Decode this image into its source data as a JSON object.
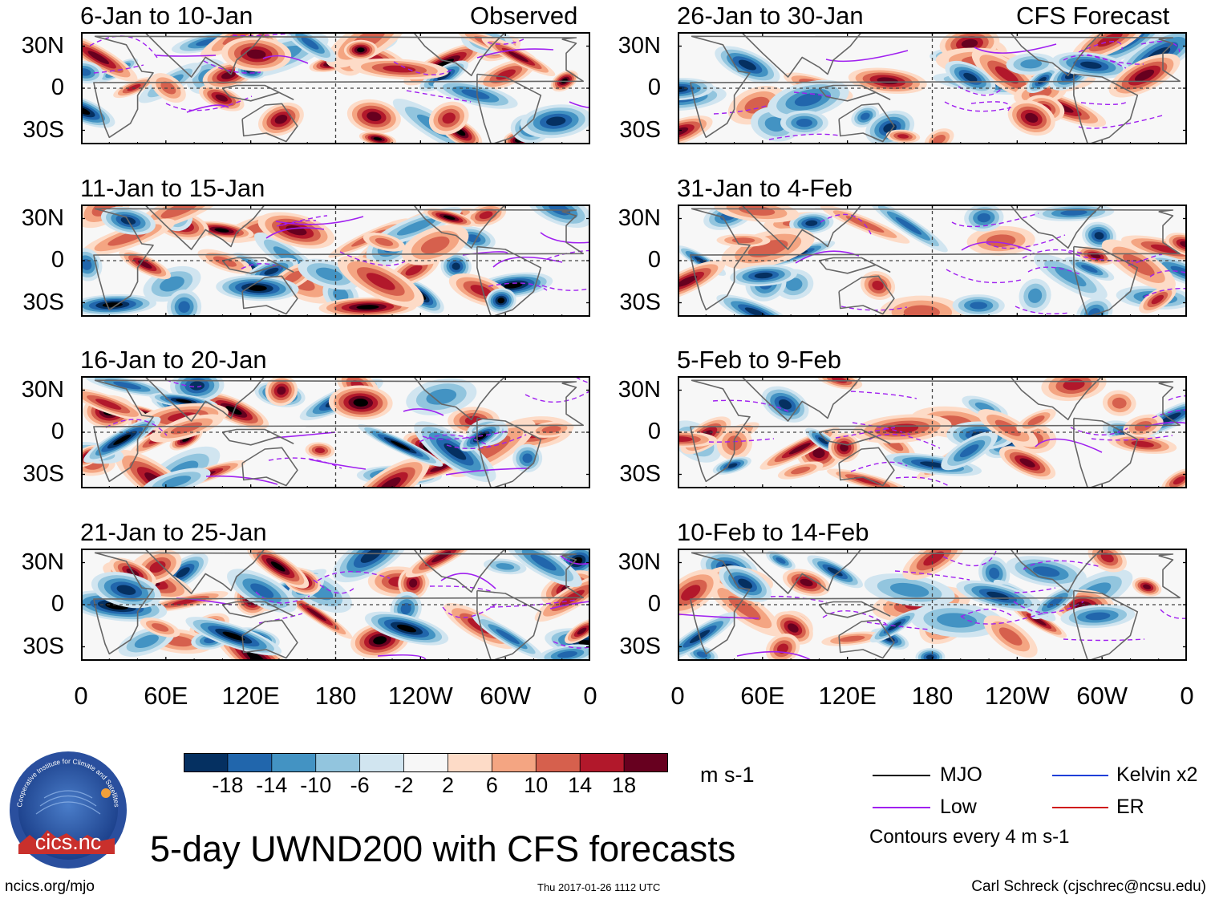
{
  "chart_data": {
    "type": "heatmap",
    "title": "5-day UWND200 with CFS forecasts",
    "variable": "UWND200",
    "units": "m s-1",
    "column_headers": [
      "Observed",
      "CFS Forecast"
    ],
    "panels": [
      {
        "label": "6-Jan to 10-Jan",
        "source": "Observed",
        "seed": 11
      },
      {
        "label": "11-Jan to 15-Jan",
        "source": "Observed",
        "seed": 23
      },
      {
        "label": "16-Jan to 20-Jan",
        "source": "Observed",
        "seed": 37
      },
      {
        "label": "21-Jan to 25-Jan",
        "source": "Observed",
        "seed": 41
      },
      {
        "label": "26-Jan to 30-Jan",
        "source": "CFS Forecast",
        "seed": 53
      },
      {
        "label": "31-Jan to 4-Feb",
        "source": "CFS Forecast",
        "seed": 67
      },
      {
        "label": "5-Feb to 9-Feb",
        "source": "CFS Forecast",
        "seed": 71
      },
      {
        "label": "10-Feb to 14-Feb",
        "source": "CFS Forecast",
        "seed": 83
      }
    ],
    "y_ticks": [
      "30N",
      "0",
      "30S"
    ],
    "y_values": [
      30,
      0,
      -30
    ],
    "ylim": [
      -40,
      40
    ],
    "x_ticks": [
      "0",
      "60E",
      "120E",
      "180",
      "120W",
      "60W",
      "0"
    ],
    "x_values": [
      0,
      60,
      120,
      180,
      240,
      300,
      360
    ],
    "xlim": [
      0,
      360
    ],
    "colorbar": {
      "labels": [
        "-18",
        "-14",
        "-10",
        "-6",
        "-2",
        "2",
        "6",
        "10",
        "14",
        "18"
      ],
      "colors": [
        "#053061",
        "#2166ac",
        "#4393c3",
        "#92c5de",
        "#d1e5f0",
        "#f7f7f7",
        "#fddbc7",
        "#f4a582",
        "#d6604d",
        "#b2182b",
        "#67001f"
      ],
      "units_label": "m s-1"
    },
    "legend": [
      {
        "label": "MJO",
        "color": "#000000"
      },
      {
        "label": "Kelvin x2",
        "color": "#1f3fd8"
      },
      {
        "label": "Low",
        "color": "#a020f0"
      },
      {
        "label": "ER",
        "color": "#d01a1a"
      }
    ],
    "contour_note": "Contours every 4 m s-1"
  },
  "footer": {
    "left": "ncics.org/mjo",
    "center": "Thu 2017-01-26 1112 UTC",
    "right": "Carl Schreck (cjschrec@ncsu.edu)",
    "logo_text": "cics.nc",
    "logo_ring_text": "Cooperative Institute for Climate and Satellites"
  }
}
